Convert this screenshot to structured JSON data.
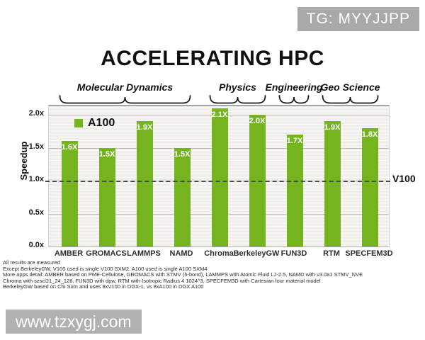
{
  "overlay": {
    "badge": "TG: MYYJJPP",
    "watermark": "www.tzxygj.com"
  },
  "chart_data": {
    "type": "bar",
    "title": "ACCELERATING HPC",
    "ylabel": "Speedup",
    "categories": [
      "AMBER",
      "GROMACS",
      "LAMMPS",
      "NAMD",
      "Chroma",
      "BerkeleyGW",
      "FUN3D",
      "RTM",
      "SPECFEM3D"
    ],
    "values": [
      1.6,
      1.5,
      1.9,
      1.5,
      2.1,
      2.0,
      1.7,
      1.9,
      1.8
    ],
    "bar_labels": [
      "1.6X",
      "1.5X",
      "1.9X",
      "1.5X",
      "2.1X",
      "2.0X",
      "1.7X",
      "1.9X",
      "1.8X"
    ],
    "groups": [
      {
        "label": "Molecular Dynamics",
        "from": 0,
        "to": 3
      },
      {
        "label": "Physics",
        "from": 4,
        "to": 5
      },
      {
        "label": "Engineering",
        "from": 6,
        "to": 6
      },
      {
        "label": "Geo Science",
        "from": 7,
        "to": 8
      }
    ],
    "yticks": [
      {
        "value": 0.0,
        "label": "0.0x"
      },
      {
        "value": 0.5,
        "label": "0.5x"
      },
      {
        "value": 1.0,
        "label": "1.0x"
      },
      {
        "value": 1.5,
        "label": "1.5x"
      },
      {
        "value": 2.0,
        "label": "2.0x"
      }
    ],
    "ylim": [
      0,
      2.13
    ],
    "grid": true,
    "legend": {
      "label": "A100",
      "position": "upper-left-inside"
    },
    "baseline": {
      "value": 1.0,
      "label": "V100"
    },
    "bar_color": "#75b41f"
  },
  "footnotes": [
    "All results are measured",
    "Except BerkeleyGW, V100 used is single V100 SXM2. A100 used is single A100 SXM4",
    "More apps detail: AMBER based on PME-Cellulose,  GROMACS with STMV (h-bond), LAMMPS with Atomic Fluid LJ-2.5, NAMD with v3.0a1 STMV_NVE",
    "Chroma with szscl21_24_128, FUN3D with dpw,  RTM with Isotropic Radius 4 1024^3, SPECFEM3D with Cartesian four material model",
    "BerkeleyGW based on Chi Sum and uses 8xV100 in DGX-1, vs 8xA100 in DGX A100"
  ]
}
